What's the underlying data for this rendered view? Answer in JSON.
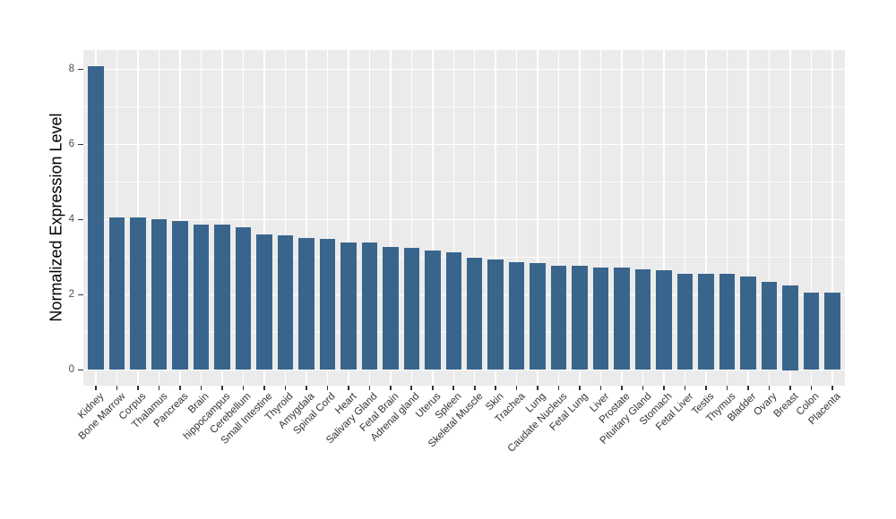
{
  "chart_data": {
    "type": "bar",
    "title": "",
    "xlabel": "",
    "ylabel": "Normalized Expression Level",
    "categories": [
      "Kidney",
      "Bone Marrow",
      "Corpus",
      "Thalamus",
      "Pancreas",
      "Brain",
      "hippocampus",
      "Cerebellum",
      "Small Intestine",
      "Thyroid",
      "Amygdala",
      "Spinal Cord",
      "Heart",
      "Salivary Gland",
      "Fetal Brain",
      "Adrenal gland",
      "Uterus",
      "Spleen",
      "Skeletal Muscle",
      "Skin",
      "Trachea",
      "Lung",
      "Caudate Nucleus",
      "Fetal Lung",
      "Liver",
      "Prostate",
      "Pituitary Gland",
      "Stomach",
      "Fetal Liver",
      "Testis",
      "Thymus",
      "Bladder",
      "Ovary",
      "Breast",
      "Colon",
      "Placenta"
    ],
    "values": [
      8.09,
      4.07,
      4.05,
      4.02,
      3.96,
      3.88,
      3.87,
      3.8,
      3.6,
      3.58,
      3.51,
      3.49,
      3.4,
      3.39,
      3.28,
      3.26,
      3.18,
      3.14,
      2.98,
      2.95,
      2.88,
      2.84,
      2.78,
      2.77,
      2.73,
      2.72,
      2.69,
      2.65,
      2.57,
      2.56,
      2.56,
      2.49,
      2.35,
      2.25,
      2.05,
      2.07
    ],
    "yticks": [
      "0",
      "2",
      "4",
      "6",
      "8"
    ],
    "ytick_values": [
      0,
      2,
      4,
      6,
      8
    ],
    "minor_tick_values": [
      1,
      3,
      5,
      7
    ],
    "ylim": [
      0,
      8.5
    ],
    "grid": true,
    "legend": false,
    "colors": {
      "bar": "#39658D",
      "panel_background": "#EBEBEB",
      "grid_major": "#FFFFFF",
      "grid_minor": "#F7F7F7",
      "axis_text": "#4D4D4D",
      "x_axis_text": "#333333",
      "axis_title": "#000000",
      "tick_mark": "#333333"
    }
  }
}
